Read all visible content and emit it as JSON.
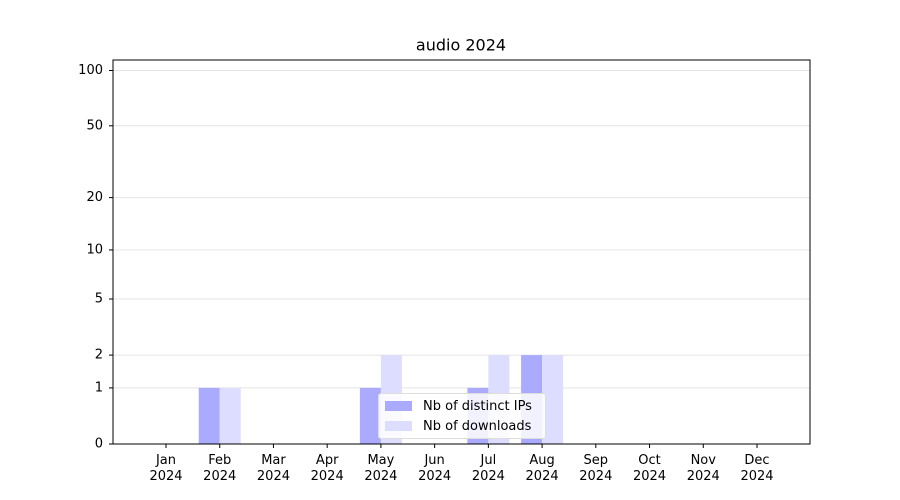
{
  "chart_data": {
    "type": "bar",
    "title": "audio 2024",
    "categories": [
      "Jan 2024",
      "Feb 2024",
      "Mar 2024",
      "Apr 2024",
      "May 2024",
      "Jun 2024",
      "Jul 2024",
      "Aug 2024",
      "Sep 2024",
      "Oct 2024",
      "Nov 2024",
      "Dec 2024"
    ],
    "series": [
      {
        "name": "Nb of distinct IPs",
        "color": "#aaaaff",
        "values": [
          0,
          1,
          0,
          0,
          1,
          0,
          1,
          2,
          0,
          0,
          0,
          0
        ]
      },
      {
        "name": "Nb of downloads",
        "color": "#ddddff",
        "values": [
          0,
          1,
          0,
          0,
          2,
          0,
          2,
          2,
          0,
          0,
          0,
          0
        ]
      }
    ],
    "yscale": "log1p",
    "ylim": [
      0,
      114
    ],
    "yticks": [
      0,
      1,
      2,
      5,
      10,
      20,
      50,
      100
    ],
    "grid": true,
    "legend": "lower center"
  }
}
